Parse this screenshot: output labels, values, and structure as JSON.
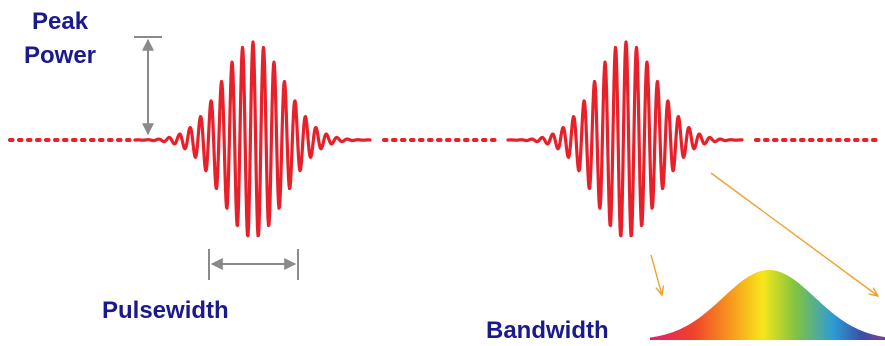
{
  "labels": {
    "peak_power_line1": "Peak",
    "peak_power_line2": "Power",
    "pulsewidth": "Pulsewidth",
    "bandwidth": "Bandwidth"
  },
  "colors": {
    "pulse": "#e8202a",
    "label": "#1a1a8c",
    "arrow": "#8a8a8a",
    "pointer": "#f0a030",
    "spectrum_stops": [
      "#e0206e",
      "#f0402a",
      "#f7a21c",
      "#f6e61a",
      "#7fc342",
      "#2e9bd6",
      "#3a4fa8",
      "#7a3f9a"
    ]
  },
  "icons": {
    "peak_power_marker": "double-arrow-vertical",
    "pulsewidth_marker": "double-arrow-horizontal",
    "spectrum": "gaussian-rainbow-spectrum"
  }
}
